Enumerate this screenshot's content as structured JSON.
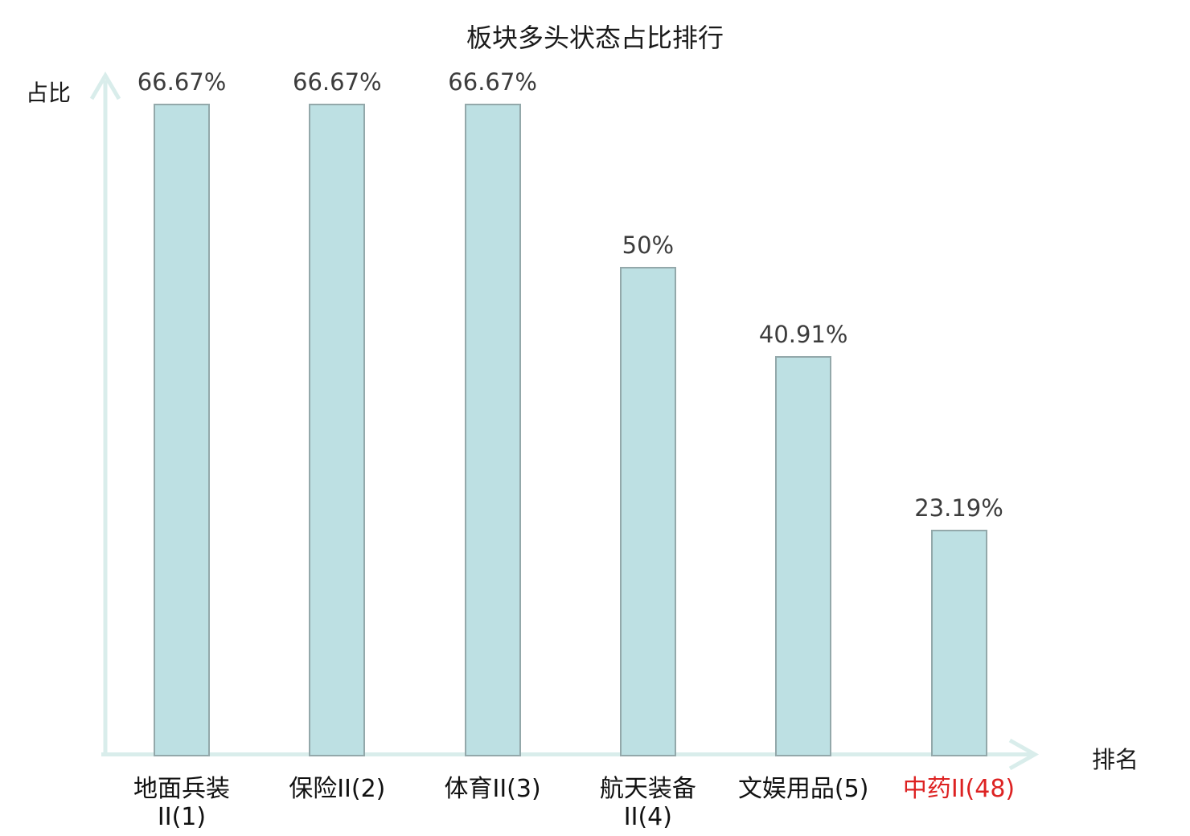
{
  "chart_data": {
    "type": "bar",
    "title": "板块多头状态占比排行",
    "xlabel": "排名",
    "ylabel": "占比",
    "categories": [
      "地面兵装II(1)",
      "保险II(2)",
      "体育II(3)",
      "航天装备II(4)",
      "文娱用品(5)",
      "中药II(48)"
    ],
    "values": [
      66.67,
      66.67,
      66.67,
      50,
      40.91,
      23.19
    ],
    "value_labels": [
      "66.67%",
      "66.67%",
      "66.67%",
      "50%",
      "40.91%",
      "23.19%"
    ],
    "tick_lines": [
      [
        "地面兵装",
        "II(1)"
      ],
      [
        "保险II(2)"
      ],
      [
        "体育II(3)"
      ],
      [
        "航天装备",
        "II(4)"
      ],
      [
        "文娱用品(5)"
      ],
      [
        "中药II(48)"
      ]
    ],
    "highlight_index": 5,
    "ylim": [
      0,
      70
    ],
    "grid": false,
    "legend": null
  },
  "colors": {
    "bar_fill": "#bde0e3",
    "bar_border": "#93a8aa",
    "axis": "#d9edeb",
    "title": "#1a1a1a",
    "value_label": "#3c3c3c",
    "tick_label": "#111111",
    "highlight": "#dd2222"
  }
}
